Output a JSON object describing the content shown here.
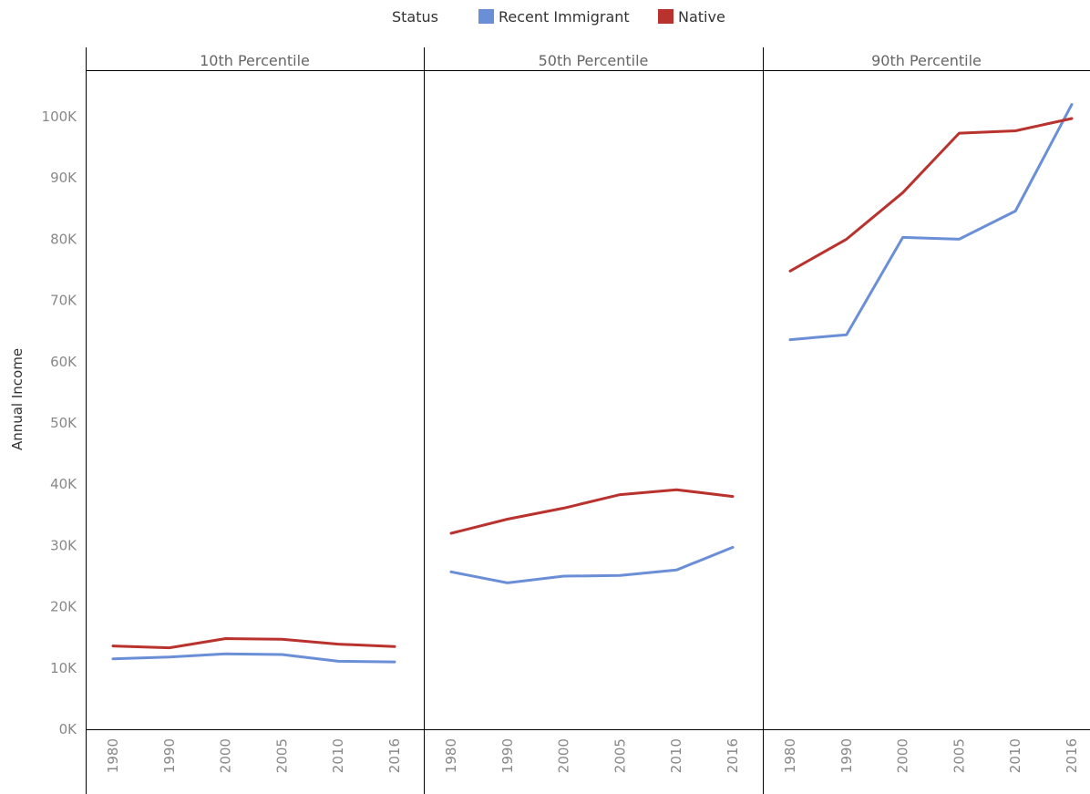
{
  "chart_data": {
    "type": "line",
    "legend": {
      "title": "Status",
      "position": "top-center",
      "entries": [
        {
          "name": "Recent Immigrant",
          "color": "#6b8fd6"
        },
        {
          "name": "Native",
          "color": "#b9322e"
        }
      ]
    },
    "ylabel": "Annual Income",
    "ylim": [
      0,
      105000
    ],
    "yticks": [
      0,
      10000,
      20000,
      30000,
      40000,
      50000,
      60000,
      70000,
      80000,
      90000,
      100000
    ],
    "ytick_labels": [
      "0K",
      "10K",
      "20K",
      "30K",
      "40K",
      "50K",
      "60K",
      "70K",
      "80K",
      "90K",
      "100K"
    ],
    "categories": [
      "1980",
      "1990",
      "2000",
      "2005",
      "2010",
      "2016"
    ],
    "grid": false,
    "panels": [
      {
        "title": "10th Percentile",
        "series": [
          {
            "name": "Recent Immigrant",
            "values": [
              11500,
              11800,
              12300,
              12200,
              11100,
              11000
            ]
          },
          {
            "name": "Native",
            "values": [
              13600,
              13300,
              14800,
              14700,
              13900,
              13500
            ]
          }
        ]
      },
      {
        "title": "50th Percentile",
        "series": [
          {
            "name": "Recent Immigrant",
            "values": [
              25700,
              23900,
              25000,
              25100,
              26000,
              29700
            ]
          },
          {
            "name": "Native",
            "values": [
              32000,
              34300,
              36100,
              38300,
              39100,
              38000
            ]
          }
        ]
      },
      {
        "title": "90th Percentile",
        "series": [
          {
            "name": "Recent Immigrant",
            "values": [
              63600,
              64400,
              80300,
              80000,
              84600,
              102000
            ]
          },
          {
            "name": "Native",
            "values": [
              74800,
              80000,
              87600,
              97300,
              97700,
              99700
            ]
          }
        ]
      }
    ]
  }
}
